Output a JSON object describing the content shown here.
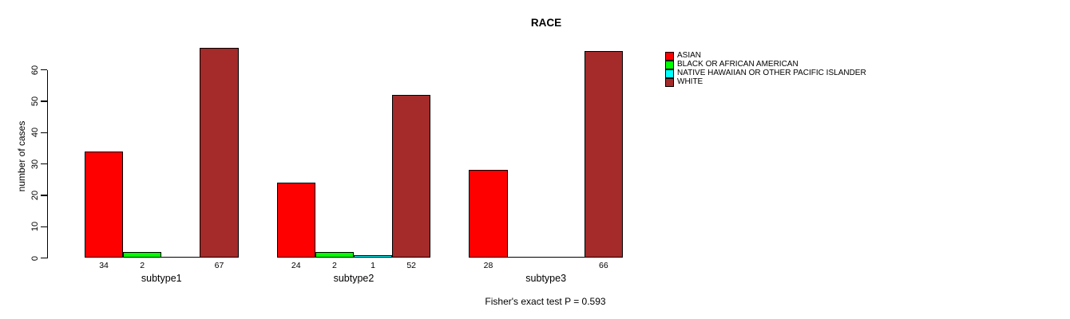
{
  "chart_data": {
    "type": "bar",
    "title": "RACE",
    "ylabel": "number of cases",
    "xlabel": "",
    "categories": [
      "subtype1",
      "subtype2",
      "subtype3"
    ],
    "series": [
      {
        "name": "ASIAN",
        "color": "#FF0000",
        "values": [
          34,
          24,
          28
        ]
      },
      {
        "name": "BLACK OR AFRICAN AMERICAN",
        "color": "#00FF00",
        "values": [
          2,
          2,
          0
        ]
      },
      {
        "name": "NATIVE HAWAIIAN OR OTHER PACIFIC ISLANDER",
        "color": "#00FFFF",
        "values": [
          0,
          1,
          0
        ]
      },
      {
        "name": "WHITE",
        "color": "#A52A2A",
        "values": [
          67,
          52,
          66
        ]
      }
    ],
    "bar_value_labels": [
      [
        "34",
        "2",
        "",
        "67"
      ],
      [
        "24",
        "2",
        "1",
        "52"
      ],
      [
        "28",
        "",
        "",
        "66"
      ]
    ],
    "y_ticks": [
      "0",
      "10",
      "20",
      "30",
      "40",
      "50",
      "60"
    ],
    "ylim": [
      0,
      60
    ],
    "grid": "off",
    "legend_position": "right",
    "annotation": "Fisher's exact test P = 0.593"
  }
}
